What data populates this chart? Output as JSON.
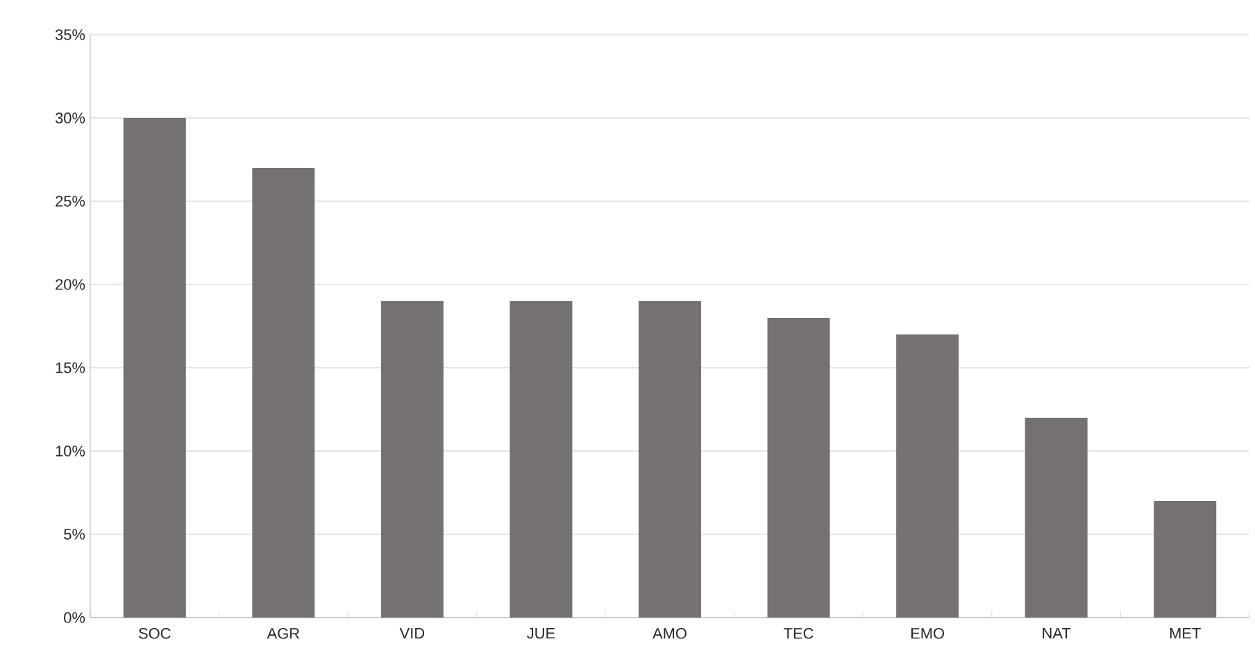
{
  "chart_data": {
    "type": "bar",
    "categories": [
      "SOC",
      "AGR",
      "VID",
      "JUE",
      "AMO",
      "TEC",
      "EMO",
      "NAT",
      "MET"
    ],
    "values": [
      30,
      27,
      19,
      19,
      19,
      18,
      17,
      12,
      7
    ],
    "color": "#757170",
    "ylim": [
      0,
      35
    ],
    "yticks": [
      {
        "value": 0,
        "label": "0%"
      },
      {
        "value": 5,
        "label": "5%"
      },
      {
        "value": 10,
        "label": "10%"
      },
      {
        "value": 15,
        "label": "15%"
      },
      {
        "value": 20,
        "label": "20%"
      },
      {
        "value": 25,
        "label": "25%"
      },
      {
        "value": 30,
        "label": "30%"
      },
      {
        "value": 35,
        "label": "35%"
      }
    ],
    "grid": "y"
  }
}
